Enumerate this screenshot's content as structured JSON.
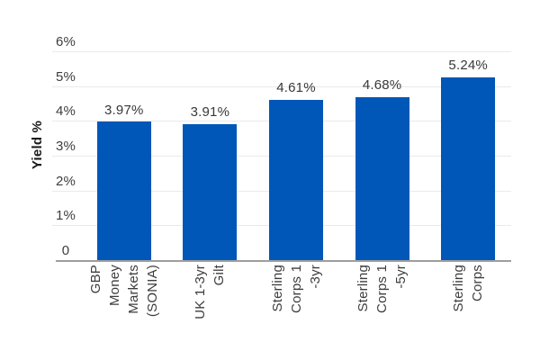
{
  "chart_data": {
    "type": "bar",
    "title": "",
    "xlabel": "",
    "ylabel": "Yield %",
    "ylim": [
      0,
      6
    ],
    "grid": true,
    "legend": false,
    "categories": [
      "GBP Money Markets (SONIA)",
      "UK 1-3yr Gilt",
      "Sterling Corps 1-3yr",
      "Sterling Corps 1-5yr",
      "Sterling Corps"
    ],
    "category_wrap_lines": [
      [
        "GBP",
        "Money",
        "Markets",
        "(SONIA)"
      ],
      [
        "UK 1-3yr",
        "Gilt"
      ],
      [
        "Sterling",
        "Corps 1",
        "-3yr"
      ],
      [
        "Sterling",
        "Corps 1",
        "-5yr"
      ],
      [
        "Sterling",
        "Corps"
      ]
    ],
    "values": [
      3.97,
      3.91,
      4.61,
      4.68,
      5.24
    ],
    "bar_labels": [
      "3.97%",
      "3.91%",
      "4.61%",
      "4.68%",
      "5.24%"
    ],
    "y_tick_values": [
      0,
      1,
      2,
      3,
      4,
      5,
      6
    ],
    "y_tick_labels": [
      "0",
      "1%",
      "2%",
      "3%",
      "4%",
      "5%",
      "6%"
    ],
    "colors": {
      "bar": "#0057B8",
      "axis_line": "#9e9e9e",
      "gridline": "#eaeaea",
      "tick_text": "#3d3d3d",
      "value_text": "#383838",
      "title_text": "#1a1a1a",
      "background": "#ffffff"
    }
  }
}
